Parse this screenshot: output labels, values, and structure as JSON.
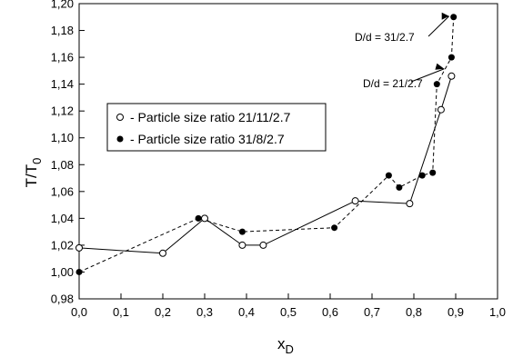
{
  "chart_data": {
    "type": "line",
    "xlabel": {
      "main": "x",
      "sub": "D"
    },
    "ylabel": {
      "main": "T/T",
      "sub": "0"
    },
    "xlim": [
      0.0,
      1.0
    ],
    "ylim": [
      0.98,
      1.2
    ],
    "xticks": [
      "0,0",
      "0,1",
      "0,2",
      "0,3",
      "0,4",
      "0,5",
      "0,6",
      "0,7",
      "0,8",
      "0,9",
      "1,0"
    ],
    "yticks": [
      "0,98",
      "1,00",
      "1,02",
      "1,04",
      "1,06",
      "1,08",
      "1,10",
      "1,12",
      "1,14",
      "1,16",
      "1,18",
      "1,20"
    ],
    "series": [
      {
        "name": "- Particle size ratio 21/11/2.7",
        "marker": "open-circle",
        "line": "solid",
        "x": [
          0.0,
          0.2,
          0.3,
          0.39,
          0.44,
          0.66,
          0.79,
          0.865,
          0.89
        ],
        "y": [
          1.018,
          1.014,
          1.04,
          1.02,
          1.02,
          1.053,
          1.051,
          1.121,
          1.146
        ]
      },
      {
        "name": "- Particle size ratio 31/8/2.7",
        "marker": "filled-circle",
        "line": "dashed",
        "x": [
          0.0,
          0.285,
          0.39,
          0.61,
          0.74,
          0.765,
          0.82,
          0.845,
          0.855,
          0.89,
          0.895
        ],
        "y": [
          1.0,
          1.04,
          1.03,
          1.033,
          1.072,
          1.063,
          1.072,
          1.074,
          1.14,
          1.16,
          1.19
        ]
      }
    ],
    "annotations": [
      {
        "text": "D/d = 31/2.7",
        "x": 0.895,
        "y": 1.19
      },
      {
        "text": "D/d = 21/2.7",
        "x": 0.89,
        "y": 1.146
      }
    ],
    "legend_position": "upper-left",
    "grid": false
  }
}
